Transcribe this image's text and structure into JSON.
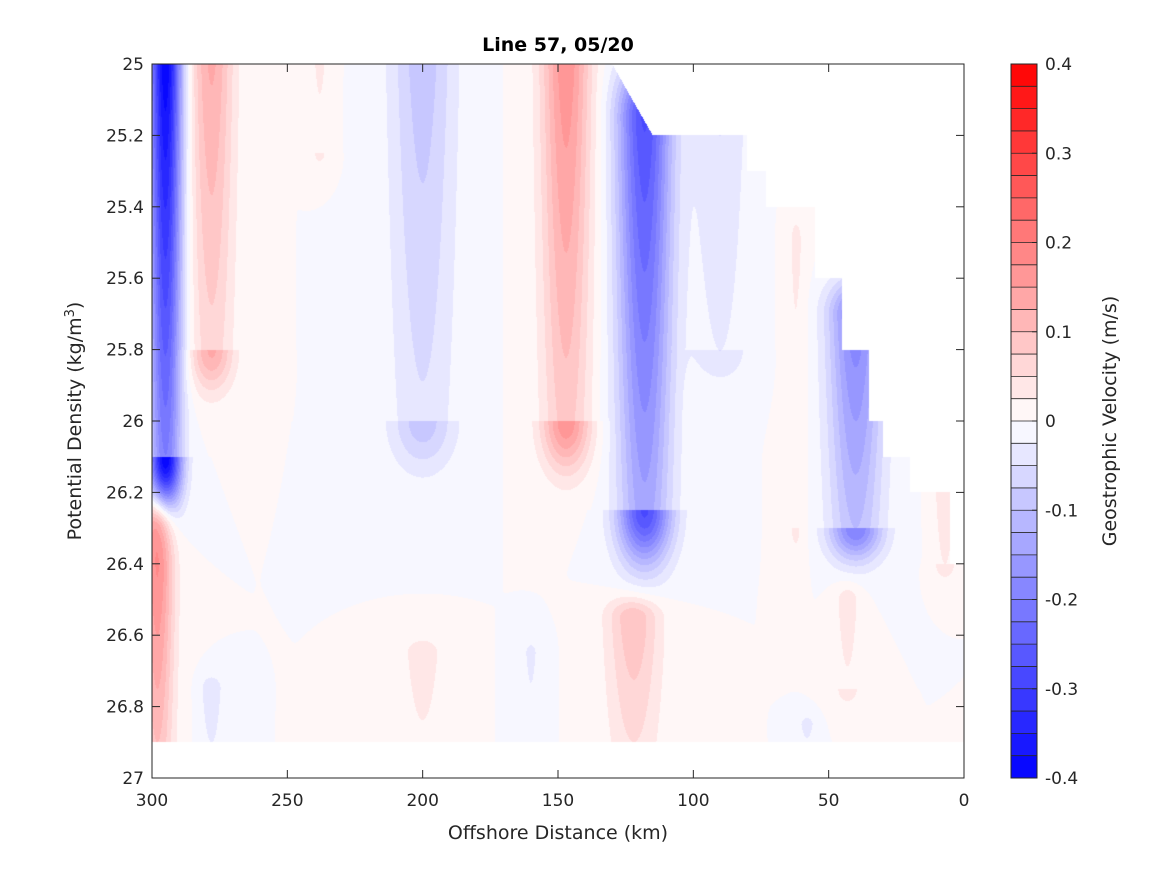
{
  "chart_data": {
    "type": "heatmap",
    "title": "Line 57, 05/20",
    "xlabel": "Offshore Distance (km)",
    "ylabel_main": "Potential Density (kg/m",
    "ylabel_sup": "3",
    "ylabel_close": ")",
    "xlim": [
      300,
      0
    ],
    "ylim": [
      25,
      27
    ],
    "x_reversed": true,
    "y_reversed": true,
    "x_ticks": [
      300,
      250,
      200,
      150,
      100,
      50,
      0
    ],
    "y_ticks": [
      25,
      25.2,
      25.4,
      25.6,
      25.8,
      26,
      26.2,
      26.4,
      26.6,
      26.8,
      27
    ],
    "y_tick_labels": [
      "25",
      "25.2",
      "25.4",
      "25.6",
      "25.8",
      "26",
      "26.2",
      "26.4",
      "26.6",
      "26.8",
      "27"
    ],
    "colorbar": {
      "label": "Geostrophic Velocity (m/s)",
      "clim": [
        -0.4,
        0.4
      ],
      "levels": 32,
      "ticks": [
        0.4,
        0.3,
        0.2,
        0.1,
        0,
        -0.1,
        -0.2,
        -0.3,
        -0.4
      ],
      "tick_labels": [
        "0.4",
        "0.3",
        "0.2",
        "0.1",
        "0",
        "-0.1",
        "-0.2",
        "-0.3",
        "-0.4"
      ],
      "neg_color": "#0000ff",
      "pos_color": "#ff0000",
      "mid_color": "#ffffff"
    },
    "features": [
      {
        "name": "jet-300km",
        "x": 295,
        "y0": 25.0,
        "y1": 26.1,
        "xw": 6,
        "peak": -0.4
      },
      {
        "name": "red-278km",
        "x": 278,
        "y0": 25.0,
        "y1": 25.8,
        "xw": 8,
        "peak": 0.13
      },
      {
        "name": "red-238km",
        "x": 238,
        "y0": 25.0,
        "y1": 25.25,
        "xw": 4,
        "peak": 0.03
      },
      {
        "name": "blue-200km",
        "x": 200,
        "y0": 25.0,
        "y1": 26.0,
        "xw": 12,
        "peak": -0.09
      },
      {
        "name": "red-147km",
        "x": 147,
        "y0": 25.0,
        "y1": 26.0,
        "xw": 9,
        "peak": 0.17
      },
      {
        "name": "blue-120km",
        "x": 118,
        "y0": 25.15,
        "y1": 26.25,
        "xw": 10,
        "peak": -0.28
      },
      {
        "name": "blue-90km",
        "x": 90,
        "y0": 25.2,
        "y1": 25.8,
        "xw": 10,
        "peak": -0.05
      },
      {
        "name": "red-60km",
        "x": 62,
        "y0": 25.5,
        "y1": 26.3,
        "xw": 4,
        "peak": 0.03
      },
      {
        "name": "blue-40km",
        "x": 40,
        "y0": 25.7,
        "y1": 26.3,
        "xw": 10,
        "peak": -0.2
      },
      {
        "name": "red-300km-deep",
        "x": 298,
        "y0": 26.3,
        "y1": 26.9,
        "xw": 6,
        "peak": 0.2
      },
      {
        "name": "red-200km-deep",
        "x": 200,
        "y0": 26.65,
        "y1": 26.9,
        "xw": 8,
        "peak": 0.04
      },
      {
        "name": "red-125km-deep",
        "x": 122,
        "y0": 26.55,
        "y1": 26.9,
        "xw": 10,
        "peak": 0.1
      },
      {
        "name": "blue-160km-deep",
        "x": 160,
        "y0": 26.65,
        "y1": 26.9,
        "xw": 4,
        "peak": -0.03
      },
      {
        "name": "blue-280km-deep",
        "x": 278,
        "y0": 26.75,
        "y1": 26.9,
        "xw": 4,
        "peak": -0.05
      },
      {
        "name": "red-45km-deep",
        "x": 43,
        "y0": 26.5,
        "y1": 26.75,
        "xw": 5,
        "peak": 0.04
      },
      {
        "name": "red-8km",
        "x": 7,
        "y0": 26.2,
        "y1": 26.4,
        "xw": 4,
        "peak": 0.05
      },
      {
        "name": "blue-58km-deep",
        "x": 58,
        "y0": 26.85,
        "y1": 26.9,
        "xw": 3,
        "peak": -0.04
      }
    ],
    "data_mask": {
      "bottom": 26.9,
      "top_profile": [
        {
          "x": 300,
          "y": 25.0
        },
        {
          "x": 130,
          "y": 25.0
        },
        {
          "x": 115,
          "y": 25.2
        },
        {
          "x": 80,
          "y": 25.2
        },
        {
          "x": 80,
          "y": 25.3
        },
        {
          "x": 73,
          "y": 25.3
        },
        {
          "x": 73,
          "y": 25.4
        },
        {
          "x": 55,
          "y": 25.4
        },
        {
          "x": 55,
          "y": 25.6
        },
        {
          "x": 45,
          "y": 25.6
        },
        {
          "x": 45,
          "y": 25.8
        },
        {
          "x": 35,
          "y": 25.8
        },
        {
          "x": 35,
          "y": 26.0
        },
        {
          "x": 30,
          "y": 26.0
        },
        {
          "x": 30,
          "y": 26.1
        },
        {
          "x": 20,
          "y": 26.1
        },
        {
          "x": 20,
          "y": 26.2
        },
        {
          "x": 5,
          "y": 26.2
        },
        {
          "x": 5,
          "y": 26.4
        },
        {
          "x": 0,
          "y": 26.4
        }
      ]
    }
  }
}
